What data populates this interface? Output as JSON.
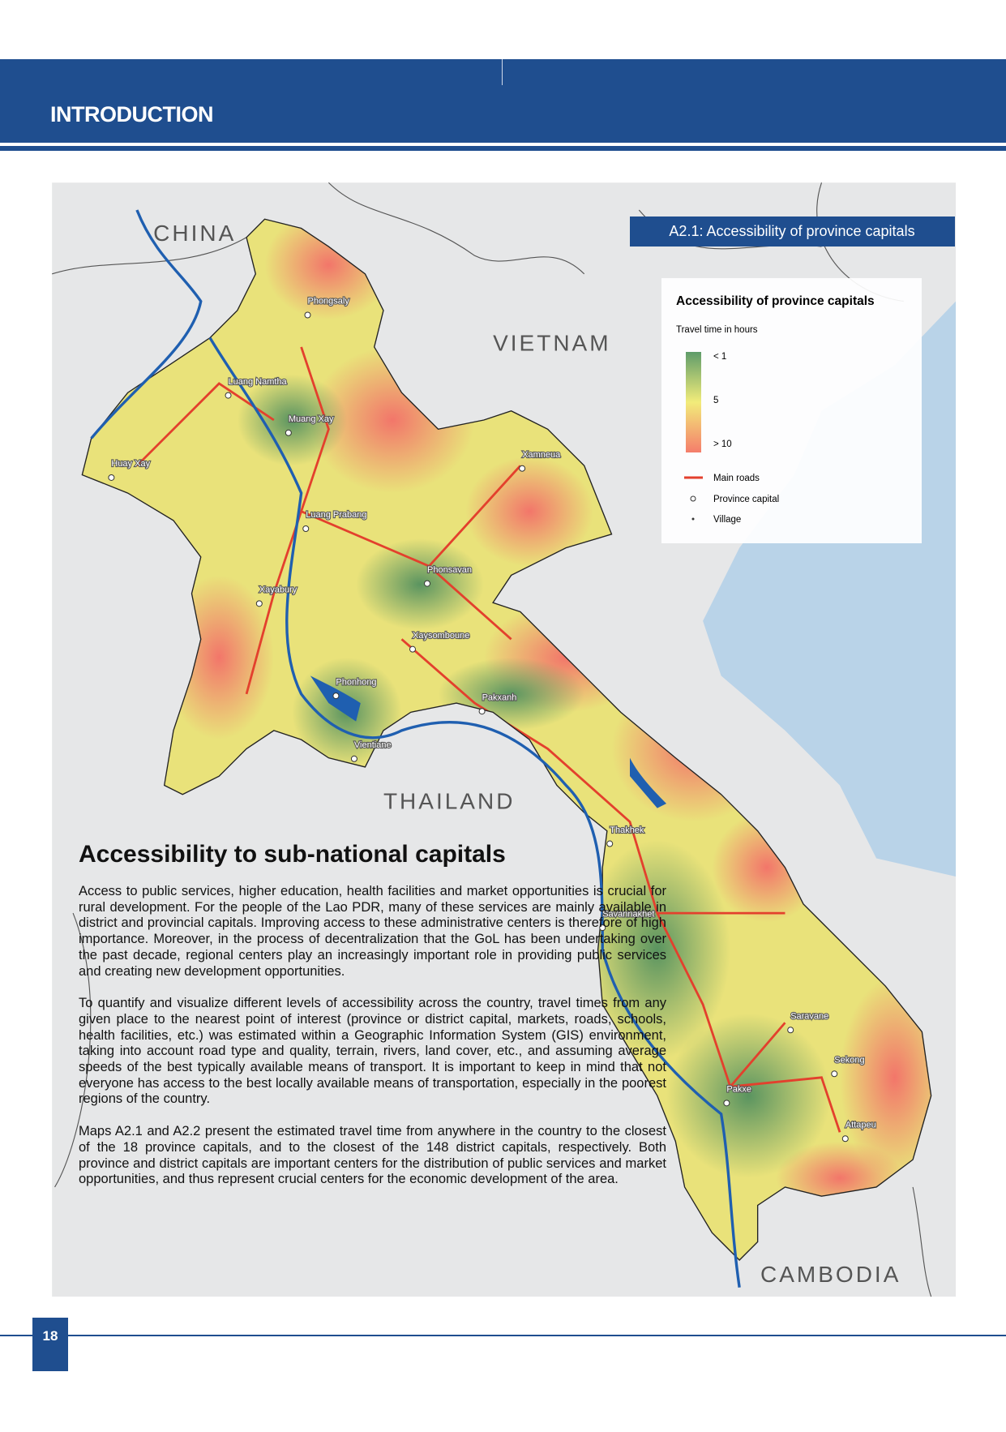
{
  "header": {
    "title": "INTRODUCTION"
  },
  "map": {
    "title": "A2.1: Accessibility of province capitals",
    "countries": [
      "CHINA",
      "VIETNAM",
      "THAILAND",
      "CAMBODIA"
    ],
    "cities": [
      "Phongsaly",
      "Luang Namtha",
      "Muang Xay",
      "Huay Xay",
      "Xamneua",
      "Luang Prabang",
      "Phonsavan",
      "Xayabury",
      "Xaysomboune",
      "Phonhong",
      "Pakxanh",
      "Vientiane",
      "Thakhek",
      "Savannakhet",
      "Saravane",
      "Sekong",
      "Pakxe",
      "Attapeu"
    ],
    "legend": {
      "title": "Accessibility of province capitals",
      "subtitle": "Travel time in hours",
      "scale_labels": [
        "< 1",
        "5",
        "> 10"
      ],
      "items": [
        "Main roads",
        "Province capital",
        "Village"
      ]
    }
  },
  "article": {
    "heading": "Accessibility to sub-national capitals",
    "paragraphs": [
      "Access to public services, higher education, health facilities and market opportunities is crucial for rural development. For the people of the Lao PDR, many of these services are mainly available in district and provincial capitals. Improving access to these administrative centers is therefore of high importance. Moreover, in the process of decentralization that the GoL has been undertaking over the past decade, regional centers play an increasingly important role in providing public services and creating new development opportunities.",
      "To quantify and visualize different levels of accessibility across the country, travel times from any given place to the nearest point of interest (province or district capital, markets, roads, schools, health facilities, etc.) was estimated within a Geographic Information System (GIS) environment, taking into account road type and quality, terrain, rivers, land cover, etc., and assuming average speeds of the best typically available means of transport. It is important to keep in mind that not everyone has access to the best locally available means of transportation, especially in the poorest regions of the country.",
      "Maps A2.1 and A2.2 present the estimated travel time from anywhere in the country to the closest of the 18 province capitals, and to the closest of the 148 district capitals, respectively. Both province and district capitals are important centers for the distribution of public services and market opportunities, and thus represent crucial centers for the economic development of the area."
    ]
  },
  "footer": {
    "page_number": "18"
  }
}
